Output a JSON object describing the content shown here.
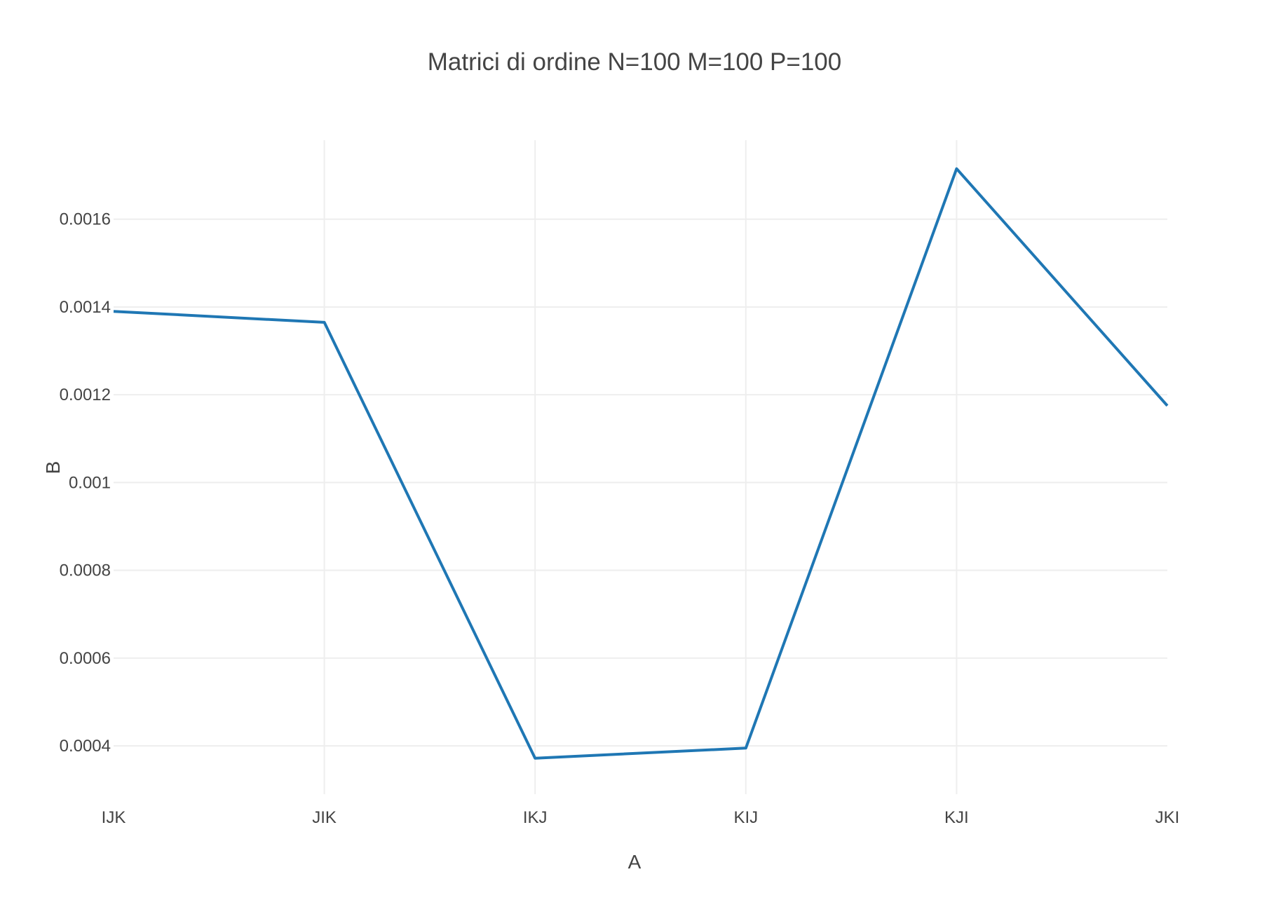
{
  "chart_data": {
    "type": "line",
    "title": "Matrici di ordine N=100 M=100 P=100",
    "xlabel": "A",
    "ylabel": "B",
    "categories": [
      "IJK",
      "JIK",
      "IKJ",
      "KIJ",
      "KJI",
      "JKI"
    ],
    "series": [
      {
        "values": [
          0.00139,
          0.001365,
          0.000372,
          0.000395,
          0.001715,
          0.001175
        ]
      }
    ],
    "yticks": [
      0.0004,
      0.0006,
      0.0008,
      0.001,
      0.0012,
      0.0014,
      0.0016
    ],
    "ytick_labels": [
      "0.0004",
      "0.0006",
      "0.0008",
      "0.001",
      "0.0012",
      "0.0014",
      "0.0016"
    ],
    "ylim": [
      0.00029,
      0.00178
    ],
    "grid": true,
    "legend": "none",
    "line_color": "#1f77b4",
    "grid_color": "#eeeeee",
    "text_color": "#444444"
  }
}
